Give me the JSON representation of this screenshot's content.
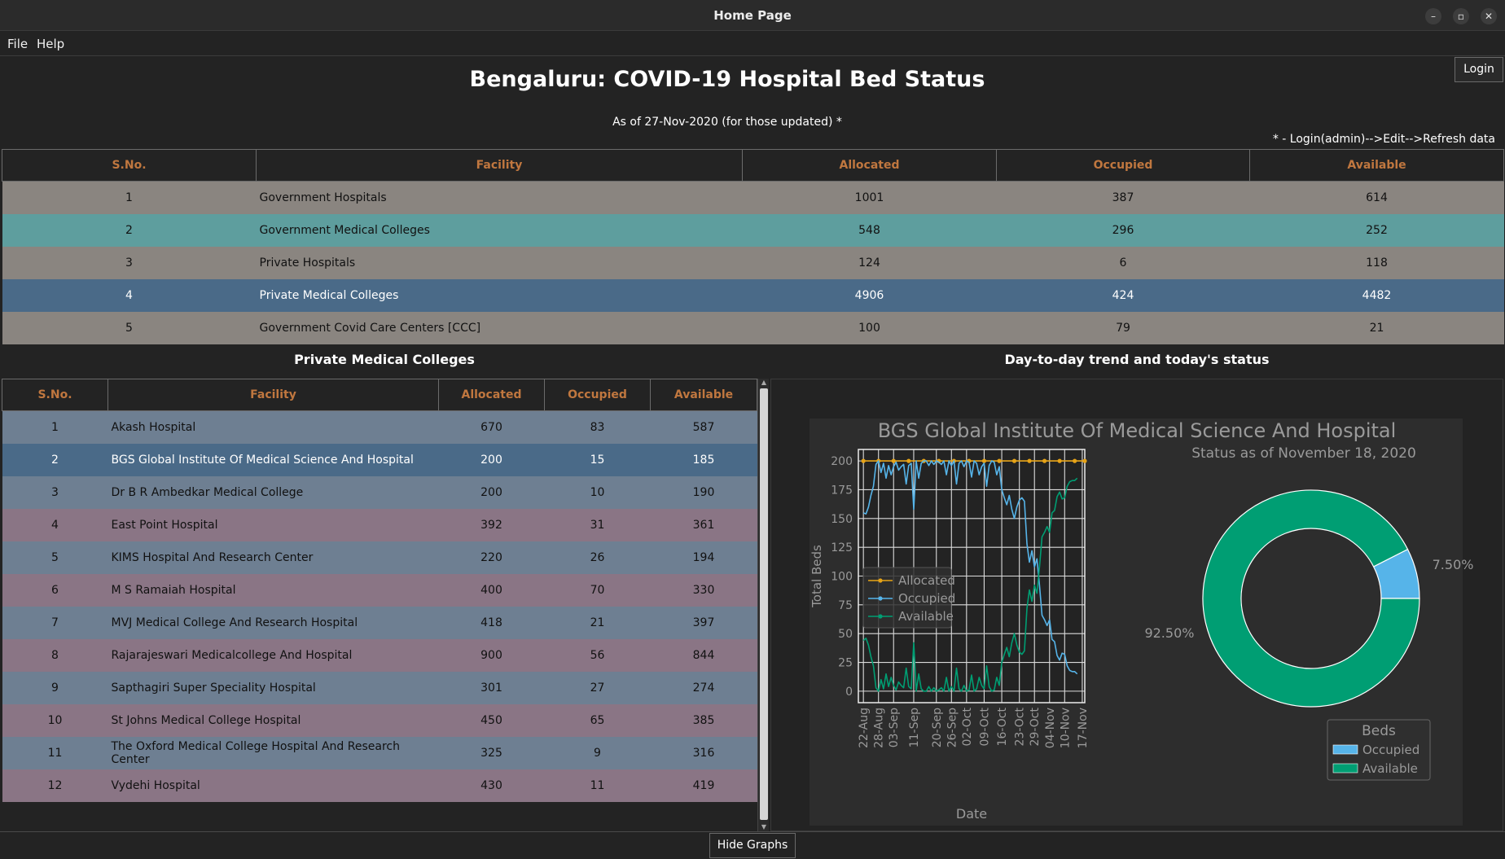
{
  "window": {
    "title": "Home Page"
  },
  "menu": {
    "file": "File",
    "help": "Help"
  },
  "login": {
    "label": "Login"
  },
  "header": {
    "title": "Bengaluru: COVID-19 Hospital Bed Status",
    "as_of": "As of 27-Nov-2020 (for those updated) *",
    "note": "* - Login(admin)-->Edit-->Refresh data"
  },
  "summary_table": {
    "columns": [
      "S.No.",
      "Facility",
      "Allocated",
      "Occupied",
      "Available"
    ],
    "rows": [
      {
        "sno": "1",
        "facility": "Government Hospitals",
        "allocated": "1001",
        "occupied": "387",
        "available": "614",
        "color": "#8a8580"
      },
      {
        "sno": "2",
        "facility": "Government Medical Colleges",
        "allocated": "548",
        "occupied": "296",
        "available": "252",
        "color": "#5e9e9e"
      },
      {
        "sno": "3",
        "facility": "Private Hospitals",
        "allocated": "124",
        "occupied": "6",
        "available": "118",
        "color": "#8a8580"
      },
      {
        "sno": "4",
        "facility": "Private Medical Colleges",
        "allocated": "4906",
        "occupied": "424",
        "available": "4482",
        "color": "#4a6a88",
        "text_color": "#ffffff"
      },
      {
        "sno": "5",
        "facility": "Government Covid Care Centers [CCC]",
        "allocated": "100",
        "occupied": "79",
        "available": "21",
        "color": "#8a8580"
      }
    ]
  },
  "detail": {
    "title": "Private Medical Colleges",
    "columns": [
      "S.No.",
      "Facility",
      "Allocated",
      "Occupied",
      "Available"
    ],
    "rows": [
      {
        "sno": "1",
        "facility": "Akash Hospital",
        "allocated": "670",
        "occupied": "83",
        "available": "587",
        "color": "#6e7f92"
      },
      {
        "sno": "2",
        "facility": "BGS Global Institute Of Medical Science And Hospital",
        "allocated": "200",
        "occupied": "15",
        "available": "185",
        "color": "#4a6a88",
        "text_color": "#ffffff"
      },
      {
        "sno": "3",
        "facility": "Dr B R Ambedkar Medical College",
        "allocated": "200",
        "occupied": "10",
        "available": "190",
        "color": "#6e7f92"
      },
      {
        "sno": "4",
        "facility": "East Point Hospital",
        "allocated": "392",
        "occupied": "31",
        "available": "361",
        "color": "#8a7585"
      },
      {
        "sno": "5",
        "facility": "KIMS Hospital And Research Center",
        "allocated": "220",
        "occupied": "26",
        "available": "194",
        "color": "#6e7f92"
      },
      {
        "sno": "6",
        "facility": "M S Ramaiah Hospital",
        "allocated": "400",
        "occupied": "70",
        "available": "330",
        "color": "#8a7585"
      },
      {
        "sno": "7",
        "facility": "MVJ Medical College And Research Hospital",
        "allocated": "418",
        "occupied": "21",
        "available": "397",
        "color": "#6e7f92"
      },
      {
        "sno": "8",
        "facility": "Rajarajeswari Medicalcollege And Hospital",
        "allocated": "900",
        "occupied": "56",
        "available": "844",
        "color": "#8a7585"
      },
      {
        "sno": "9",
        "facility": "Sapthagiri Super Speciality Hospital",
        "allocated": "301",
        "occupied": "27",
        "available": "274",
        "color": "#6e7f92"
      },
      {
        "sno": "10",
        "facility": "St Johns Medical College Hospital",
        "allocated": "450",
        "occupied": "65",
        "available": "385",
        "color": "#8a7585"
      },
      {
        "sno": "11",
        "facility": "The Oxford Medical College Hospital And Research Center",
        "allocated": "325",
        "occupied": "9",
        "available": "316",
        "color": "#6e7f92"
      },
      {
        "sno": "12",
        "facility": "Vydehi Hospital",
        "allocated": "430",
        "occupied": "11",
        "available": "419",
        "color": "#8a7585"
      }
    ]
  },
  "graphs": {
    "title": "Day-to-day trend and today's status"
  },
  "hide_graphs": {
    "label": "Hide Graphs"
  },
  "chart_data": [
    {
      "type": "line",
      "title": "BGS Global Institute Of Medical Science And Hospital",
      "xlabel": "Date",
      "ylabel": "Total Beds",
      "ylim": [
        -10,
        210
      ],
      "yticks": [
        0,
        25,
        50,
        75,
        100,
        125,
        150,
        175,
        200
      ],
      "xlim": [
        0,
        90
      ],
      "x_ticks": [
        {
          "x": 2,
          "label": "22-Aug"
        },
        {
          "x": 8,
          "label": "28-Aug"
        },
        {
          "x": 14,
          "label": "03-Sep"
        },
        {
          "x": 22,
          "label": "11-Sep"
        },
        {
          "x": 31,
          "label": "20-Sep"
        },
        {
          "x": 37,
          "label": "26-Sep"
        },
        {
          "x": 43,
          "label": "02-Oct"
        },
        {
          "x": 50,
          "label": "09-Oct"
        },
        {
          "x": 57,
          "label": "16-Oct"
        },
        {
          "x": 64,
          "label": "23-Oct"
        },
        {
          "x": 70,
          "label": "29-Oct"
        },
        {
          "x": 76,
          "label": "04-Nov"
        },
        {
          "x": 82,
          "label": "10-Nov"
        },
        {
          "x": 89,
          "label": "17-Nov"
        }
      ],
      "legend": [
        "Allocated",
        "Occupied",
        "Available"
      ],
      "legend_position": "center-left",
      "series": [
        {
          "name": "Allocated",
          "color": "#e6a317",
          "points": [
            [
              2,
              200
            ],
            [
              8,
              200
            ],
            [
              14,
              200
            ],
            [
              20,
              200
            ],
            [
              26,
              200
            ],
            [
              32,
              200
            ],
            [
              38,
              200
            ],
            [
              44,
              200
            ],
            [
              50,
              200
            ],
            [
              56,
              200
            ],
            [
              62,
              200
            ],
            [
              68,
              200
            ],
            [
              74,
              200
            ],
            [
              80,
              200
            ],
            [
              86,
              200
            ],
            [
              90,
              200
            ]
          ]
        },
        {
          "name": "Occupied",
          "color": "#56b4e9",
          "points": [
            [
              2,
              155
            ],
            [
              3,
              154
            ],
            [
              4,
              160
            ],
            [
              5,
              170
            ],
            [
              6,
              178
            ],
            [
              7,
              197
            ],
            [
              8,
              200
            ],
            [
              9,
              190
            ],
            [
              10,
              198
            ],
            [
              11,
              185
            ],
            [
              12,
              196
            ],
            [
              13,
              188
            ],
            [
              14,
              195
            ],
            [
              15,
              199
            ],
            [
              16,
              192
            ],
            [
              17,
              195
            ],
            [
              18,
              197
            ],
            [
              19,
              180
            ],
            [
              20,
              196
            ],
            [
              21,
              198
            ],
            [
              22,
              158
            ],
            [
              23,
              200
            ],
            [
              24,
              185
            ],
            [
              25,
              198
            ],
            [
              26,
              200
            ],
            [
              27,
              200
            ],
            [
              28,
              196
            ],
            [
              29,
              200
            ],
            [
              30,
              197
            ],
            [
              31,
              200
            ],
            [
              32,
              199
            ],
            [
              33,
              197
            ],
            [
              34,
              200
            ],
            [
              35,
              188
            ],
            [
              36,
              200
            ],
            [
              37,
              196
            ],
            [
              38,
              200
            ],
            [
              39,
              180
            ],
            [
              40,
              198
            ],
            [
              41,
              200
            ],
            [
              42,
              195
            ],
            [
              43,
              200
            ],
            [
              44,
              199
            ],
            [
              45,
              186
            ],
            [
              46,
              200
            ],
            [
              47,
              198
            ],
            [
              48,
              188
            ],
            [
              49,
              195
            ],
            [
              50,
              198
            ],
            [
              51,
              178
            ],
            [
              52,
              196
            ],
            [
              53,
              200
            ],
            [
              54,
              199
            ],
            [
              55,
              188
            ],
            [
              56,
              195
            ],
            [
              57,
              175
            ],
            [
              58,
              168
            ],
            [
              59,
              162
            ],
            [
              60,
              170
            ],
            [
              61,
              158
            ],
            [
              62,
              150
            ],
            [
              63,
              160
            ],
            [
              64,
              166
            ],
            [
              65,
              168
            ],
            [
              66,
              165
            ],
            [
              67,
              128
            ],
            [
              68,
              112
            ],
            [
              69,
              122
            ],
            [
              70,
              108
            ],
            [
              71,
              115
            ],
            [
              72,
              92
            ],
            [
              73,
              66
            ],
            [
              74,
              62
            ],
            [
              75,
              57
            ],
            [
              76,
              62
            ],
            [
              77,
              45
            ],
            [
              78,
              43
            ],
            [
              79,
              31
            ],
            [
              80,
              27
            ],
            [
              81,
              33
            ],
            [
              82,
              32
            ],
            [
              83,
              22
            ],
            [
              84,
              18
            ],
            [
              85,
              17
            ],
            [
              86,
              17
            ],
            [
              87,
              15
            ]
          ]
        },
        {
          "name": "Available",
          "color": "#009e73",
          "points": [
            [
              2,
              44
            ],
            [
              3,
              46
            ],
            [
              4,
              40
            ],
            [
              5,
              30
            ],
            [
              6,
              22
            ],
            [
              7,
              3
            ],
            [
              8,
              0
            ],
            [
              9,
              10
            ],
            [
              10,
              2
            ],
            [
              11,
              15
            ],
            [
              12,
              4
            ],
            [
              13,
              12
            ],
            [
              14,
              5
            ],
            [
              15,
              1
            ],
            [
              16,
              8
            ],
            [
              17,
              5
            ],
            [
              18,
              3
            ],
            [
              19,
              20
            ],
            [
              20,
              4
            ],
            [
              21,
              2
            ],
            [
              22,
              42
            ],
            [
              23,
              0
            ],
            [
              24,
              15
            ],
            [
              25,
              2
            ],
            [
              26,
              0
            ],
            [
              27,
              0
            ],
            [
              28,
              4
            ],
            [
              29,
              0
            ],
            [
              30,
              3
            ],
            [
              31,
              0
            ],
            [
              32,
              1
            ],
            [
              33,
              3
            ],
            [
              34,
              0
            ],
            [
              35,
              12
            ],
            [
              36,
              0
            ],
            [
              37,
              4
            ],
            [
              38,
              0
            ],
            [
              39,
              20
            ],
            [
              40,
              2
            ],
            [
              41,
              0
            ],
            [
              42,
              5
            ],
            [
              43,
              0
            ],
            [
              44,
              1
            ],
            [
              45,
              14
            ],
            [
              46,
              0
            ],
            [
              47,
              2
            ],
            [
              48,
              12
            ],
            [
              49,
              5
            ],
            [
              50,
              2
            ],
            [
              51,
              22
            ],
            [
              52,
              4
            ],
            [
              53,
              0
            ],
            [
              54,
              1
            ],
            [
              55,
              12
            ],
            [
              56,
              5
            ],
            [
              57,
              25
            ],
            [
              58,
              32
            ],
            [
              59,
              38
            ],
            [
              60,
              30
            ],
            [
              61,
              42
            ],
            [
              62,
              50
            ],
            [
              63,
              40
            ],
            [
              64,
              34
            ],
            [
              65,
              32
            ],
            [
              66,
              35
            ],
            [
              67,
              72
            ],
            [
              68,
              88
            ],
            [
              69,
              78
            ],
            [
              70,
              92
            ],
            [
              71,
              85
            ],
            [
              72,
              108
            ],
            [
              73,
              134
            ],
            [
              74,
              138
            ],
            [
              75,
              143
            ],
            [
              76,
              138
            ],
            [
              77,
              155
            ],
            [
              78,
              157
            ],
            [
              79,
              169
            ],
            [
              80,
              173
            ],
            [
              81,
              167
            ],
            [
              82,
              168
            ],
            [
              83,
              178
            ],
            [
              84,
              182
            ],
            [
              85,
              183
            ],
            [
              86,
              183
            ],
            [
              87,
              185
            ]
          ]
        }
      ]
    },
    {
      "type": "pie",
      "subtitle": "Status as of November 18, 2020",
      "legend_title": "Beds",
      "legend_position": "bottom-right",
      "slices": [
        {
          "label": "Occupied",
          "value": 7.5,
          "pct_label": "7.50%",
          "color": "#56b4e9"
        },
        {
          "label": "Available",
          "value": 92.5,
          "pct_label": "92.50%",
          "color": "#009e73"
        }
      ]
    }
  ]
}
